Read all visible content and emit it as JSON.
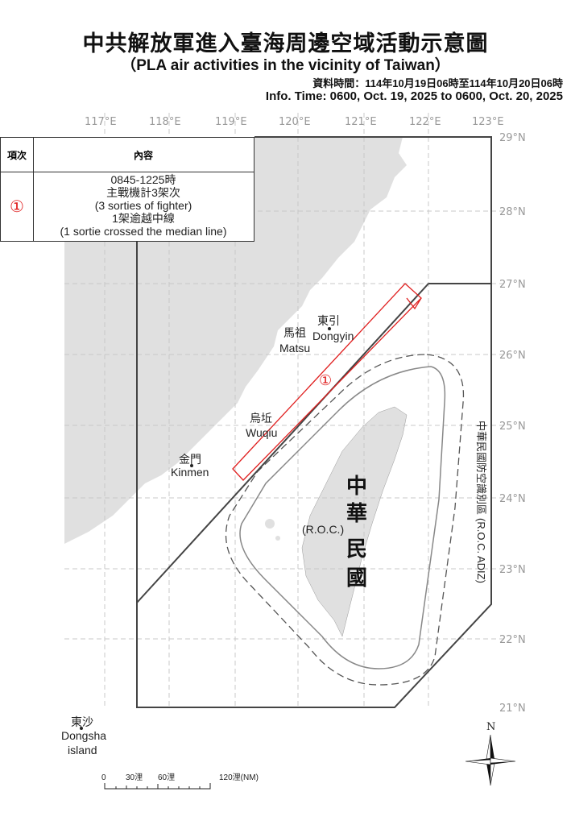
{
  "header": {
    "title": "中共解放軍進入臺海周邊空域活動示意圖",
    "subtitle": "（PLA air activities in the vicinity of Taiwan）",
    "info_zh": "資料時間：114年10月19日06時至114年10月20日06時",
    "info_en": "Info. Time: 0600, Oct. 19, 2025 to 0600, Oct. 20, 2025"
  },
  "table": {
    "col_item": "項次",
    "col_content": "內容",
    "rows": [
      {
        "item": "①",
        "lines": [
          "0845-1225時",
          "主戰機計3架次",
          "(3 sorties of fighter)",
          "1架逾越中線",
          "(1 sortie crossed the median line)"
        ]
      }
    ]
  },
  "map": {
    "longitude_labels": [
      "117°E",
      "118°E",
      "119°E",
      "120°E",
      "121°E",
      "122°E",
      "123°E"
    ],
    "latitude_labels": [
      "29°N",
      "28°N",
      "27°N",
      "26°N",
      "25°N",
      "24°N",
      "23°N",
      "22°N",
      "21°N"
    ],
    "places": {
      "dongyin_zh": "東引",
      "dongyin_en": "Dongyin",
      "matsu_zh": "馬祖",
      "matsu_en": "Matsu",
      "wuqiu_zh": "烏坵",
      "wuqiu_en": "Wuqiu",
      "kinmen_zh": "金門",
      "kinmen_en": "Kinmen",
      "dongsha_zh": "東沙",
      "dongsha_en1": "Dongsha",
      "dongsha_en2": "island",
      "roc_zh": [
        "中",
        "華",
        "民",
        "國"
      ],
      "roc_en": "(R.O.C.)"
    },
    "adiz_label_zh": "中華民國防空識別區",
    "adiz_label_en": "(R.O.C. ADIZ)",
    "track_marker": "①",
    "north": "N",
    "scale": {
      "labels": [
        "0",
        "30浬",
        "60浬",
        "120浬(NM)"
      ]
    },
    "colors": {
      "land": "#e0e0e0",
      "track": "#e02020",
      "boundary": "#444444"
    }
  }
}
